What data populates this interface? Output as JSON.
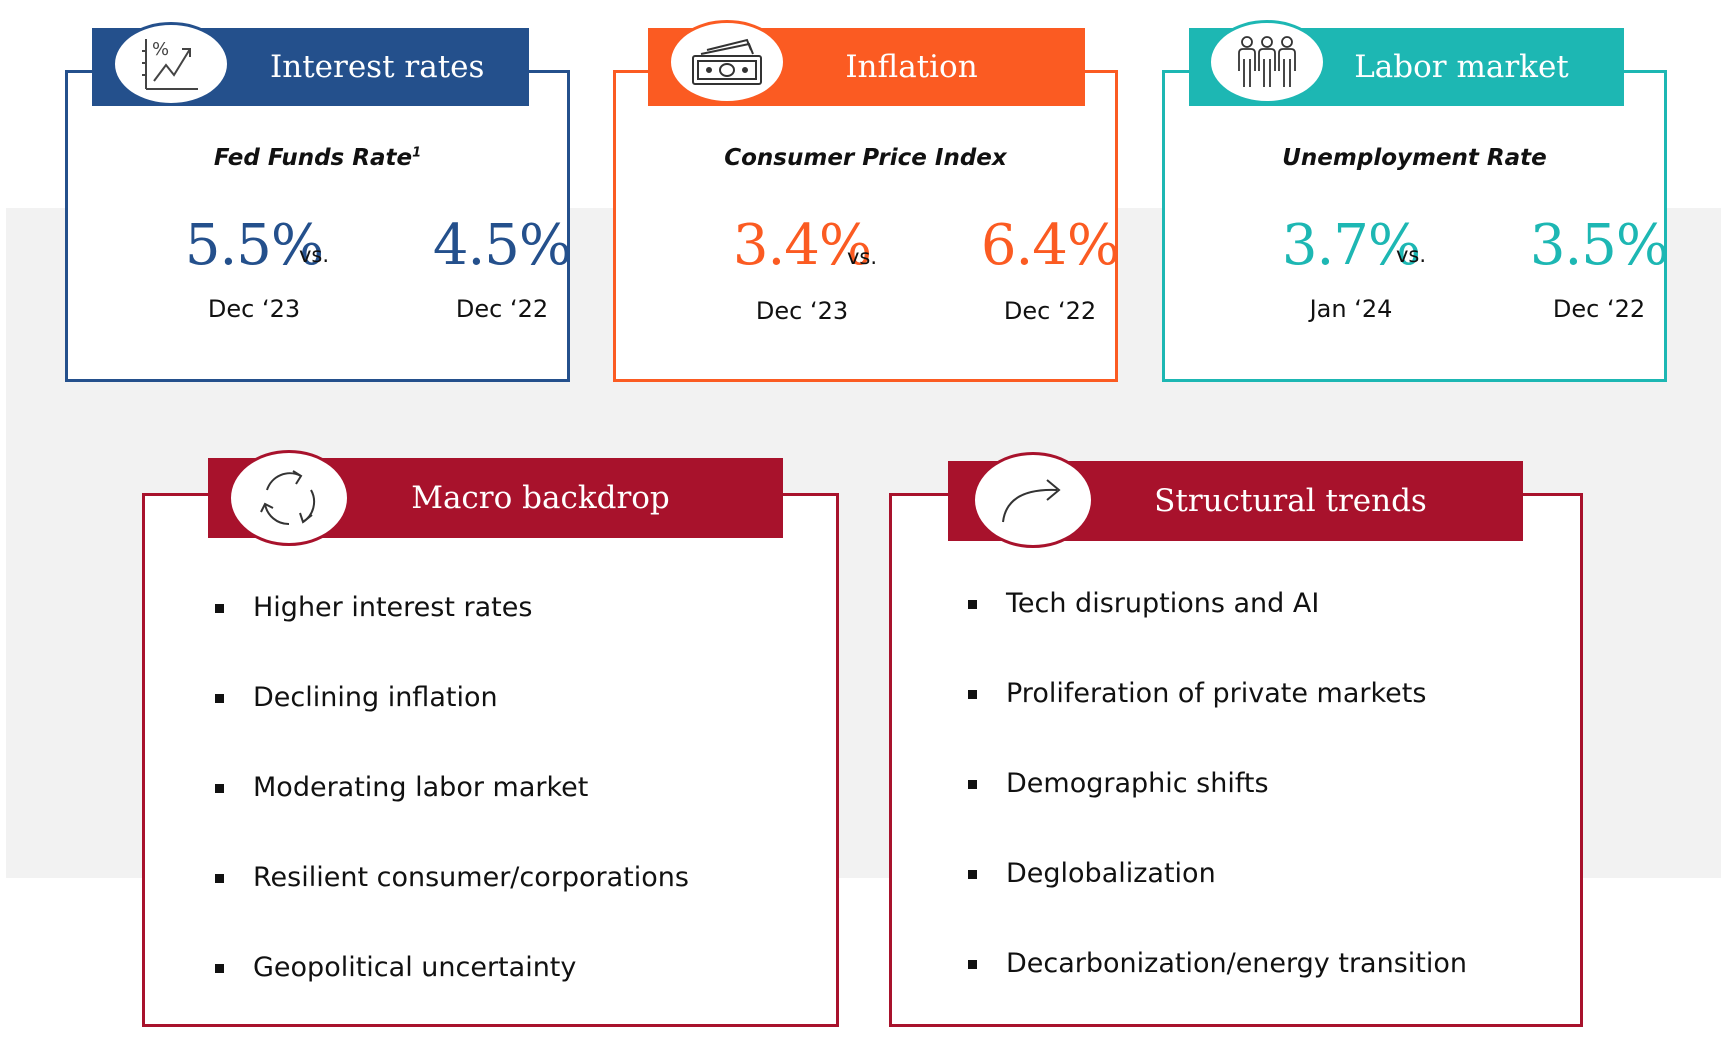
{
  "colors": {
    "interest": "#24508c",
    "inflation": "#fb5b22",
    "labor": "#1db7b3",
    "macro": "#a8122c",
    "band": "#f2f2f2"
  },
  "cards": [
    {
      "title": "Interest rates",
      "icon": "percent-chart-icon",
      "subtitle": "Fed Funds Rate",
      "superscript": "1",
      "left_value": "5.5%",
      "left_date": "Dec ‘23",
      "vs": "vs.",
      "right_value": "4.5%",
      "right_date": "Dec ‘22"
    },
    {
      "title": "Inflation",
      "icon": "banknotes-icon",
      "subtitle": "Consumer Price Index",
      "left_value": "3.4%",
      "left_date": "Dec ‘23",
      "vs": "vs.",
      "right_value": "6.4%",
      "right_date": "Dec ‘22"
    },
    {
      "title": "Labor market",
      "icon": "workers-icon",
      "subtitle": "Unemployment Rate",
      "left_value": "3.7%",
      "left_date": "Jan ‘24",
      "vs": "vs.",
      "right_value": "3.5%",
      "right_date": "Dec ‘22"
    }
  ],
  "macro": {
    "title": "Macro backdrop",
    "icon": "cycle-arrows-icon",
    "items": [
      "Higher interest rates",
      "Declining inflation",
      "Moderating labor market",
      "Resilient consumer/corporations",
      "Geopolitical uncertainty"
    ]
  },
  "structural": {
    "title": "Structural trends",
    "icon": "curved-arrow-icon",
    "items": [
      "Tech disruptions and AI",
      "Proliferation of private markets",
      "Demographic shifts",
      "Deglobalization",
      "Decarbonization/energy transition"
    ]
  }
}
